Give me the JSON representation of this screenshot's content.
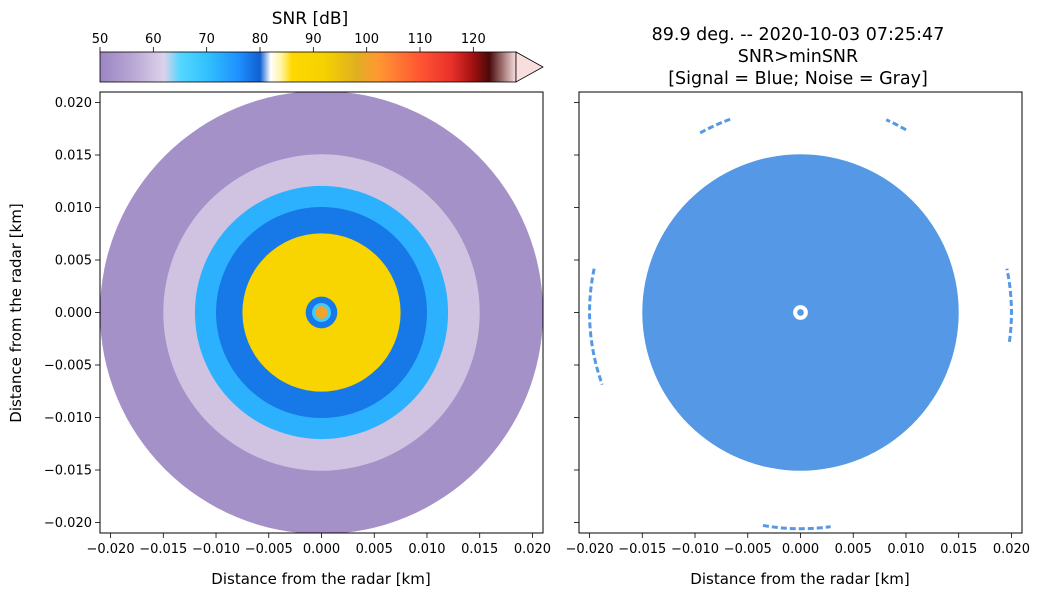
{
  "chart_data": [
    {
      "type": "heatmap",
      "subtype": "radar-ppi",
      "title": "",
      "xlabel": "Distance from the radar [km]",
      "ylabel": "Distance from the radar [km]",
      "xlim": [
        -0.021,
        0.021
      ],
      "ylim": [
        -0.021,
        0.021
      ],
      "xticks": [
        -0.02,
        -0.015,
        -0.01,
        -0.005,
        0.0,
        0.005,
        0.01,
        0.015,
        0.02
      ],
      "yticks": [
        -0.02,
        -0.015,
        -0.01,
        -0.005,
        0.0,
        0.005,
        0.01,
        0.015,
        0.02
      ],
      "xtick_labels": [
        "−0.020",
        "−0.015",
        "−0.010",
        "−0.005",
        "0.000",
        "0.005",
        "0.010",
        "0.015",
        "0.020"
      ],
      "ytick_labels": [
        "−0.020",
        "−0.015",
        "−0.010",
        "−0.005",
        "0.000",
        "0.005",
        "0.010",
        "0.015",
        "0.020"
      ],
      "grid": false,
      "colorbar": {
        "label": "SNR [dB]",
        "range": [
          50,
          128
        ],
        "ticks": [
          50,
          60,
          70,
          80,
          90,
          100,
          110,
          120
        ],
        "tick_labels": [
          "50",
          "60",
          "70",
          "80",
          "90",
          "100",
          "110",
          "120"
        ],
        "extend": "max",
        "location": "top"
      },
      "rings": [
        {
          "r_min": 0.0,
          "r_max": 0.0006,
          "snr_db": 100
        },
        {
          "r_min": 0.0006,
          "r_max": 0.0009,
          "snr_db": 68
        },
        {
          "r_min": 0.0009,
          "r_max": 0.0015,
          "snr_db": 78
        },
        {
          "r_min": 0.0015,
          "r_max": 0.0075,
          "snr_db": 90
        },
        {
          "r_min": 0.0075,
          "r_max": 0.01,
          "snr_db": 78
        },
        {
          "r_min": 0.01,
          "r_max": 0.012,
          "snr_db": 72
        },
        {
          "r_min": 0.012,
          "r_max": 0.015,
          "snr_db": 60
        },
        {
          "r_min": 0.015,
          "r_max": 0.021,
          "snr_db": 52
        }
      ]
    },
    {
      "type": "heatmap",
      "subtype": "radar-ppi-mask",
      "title": "89.9 deg. -- 2020-10-03 07:25:47",
      "subtitle": "SNR>minSNR",
      "subtitle2": "[Signal = Blue; Noise = Gray]",
      "xlabel": "Distance from the radar [km]",
      "ylabel": "",
      "xlim": [
        -0.021,
        0.021
      ],
      "ylim": [
        -0.021,
        0.021
      ],
      "xticks": [
        -0.02,
        -0.015,
        -0.01,
        -0.005,
        0.0,
        0.005,
        0.01,
        0.015,
        0.02
      ],
      "xtick_labels": [
        "−0.020",
        "−0.015",
        "−0.010",
        "−0.005",
        "0.000",
        "0.005",
        "0.010",
        "0.015",
        "0.020"
      ],
      "yticks": [
        -0.02,
        -0.015,
        -0.01,
        -0.005,
        0.0,
        0.005,
        0.01,
        0.015,
        0.02
      ],
      "ytick_labels_shown": false,
      "grid": false,
      "signal_color": "#5599e6",
      "signal_region": {
        "r_min": 0.0007,
        "r_max": 0.015
      },
      "signal_arcs": [
        {
          "radius": 0.0195,
          "start_deg": 110,
          "end_deg": 120
        },
        {
          "radius": 0.02,
          "start_deg": 60,
          "end_deg": 66
        },
        {
          "radius": 0.02,
          "start_deg": -8,
          "end_deg": 12
        },
        {
          "radius": 0.02,
          "start_deg": 168,
          "end_deg": 200
        },
        {
          "radius": 0.0205,
          "start_deg": 260,
          "end_deg": 278
        }
      ]
    }
  ]
}
